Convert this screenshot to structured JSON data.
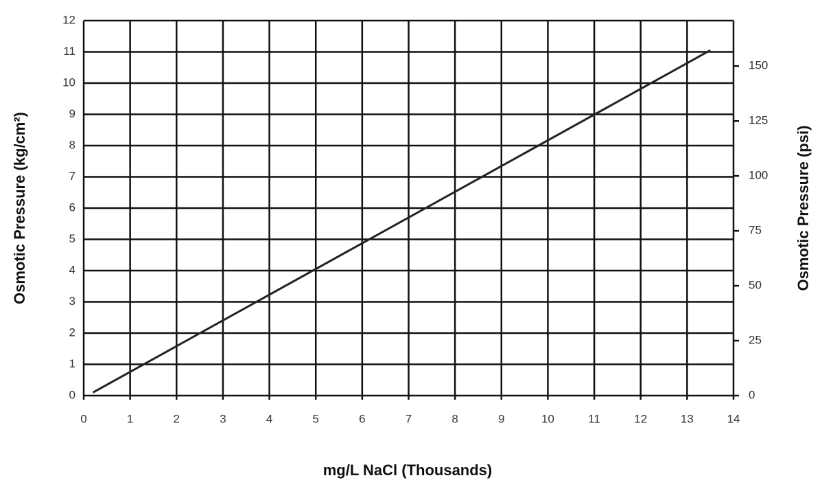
{
  "chart_data": {
    "type": "line",
    "x": [
      0.2,
      13.5
    ],
    "series": [
      {
        "color": "#222222",
        "values": [
          0.1,
          11.05
        ]
      }
    ],
    "xlim": [
      0,
      14
    ],
    "xticks": [
      0,
      1,
      2,
      3,
      4,
      5,
      6,
      7,
      8,
      9,
      10,
      11,
      12,
      13,
      14
    ],
    "ylim": [
      0,
      12
    ],
    "yticks": [
      0,
      1,
      2,
      3,
      4,
      5,
      6,
      7,
      8,
      9,
      10,
      11,
      12
    ],
    "y2lim": [
      0,
      170.7
    ],
    "y2ticks": [
      0,
      25,
      50,
      75,
      100,
      125,
      150
    ],
    "xlabel": "mg/L NaCl (Thousands)",
    "ylabel": "Osmotic Pressure (kg/cm²)",
    "y2label": "Osmotic Pressure (psi)",
    "grid": true
  }
}
